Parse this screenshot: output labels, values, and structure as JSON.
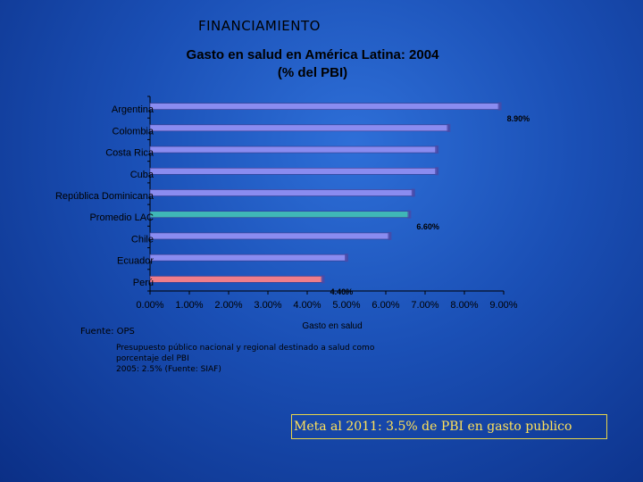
{
  "slide": {
    "title": "FINANCIAMIENTO",
    "source": "Fuente: OPS",
    "note_line1": "Presupuesto público nacional y regional destinado a salud como",
    "note_line2": "porcentaje del PBI",
    "note_line3": "2005: 2.5% (Fuente: SIAF)",
    "goal": "Meta al 2011: 3.5% de PBI en gasto publico"
  },
  "colors": {
    "default_bar": "#8a8cf0",
    "highlight_bar": "#3fb7b7",
    "peru_bar": "#ee7d8a",
    "axis": "#000000"
  },
  "chart_data": {
    "type": "bar",
    "orientation": "horizontal",
    "title_line1": "Gasto en salud en América Latina: 2004",
    "title_line2": "(% del PBI)",
    "xlabel": "Gasto en salud",
    "xlim": [
      0,
      9
    ],
    "xticks": [
      "0.00%",
      "1.00%",
      "2.00%",
      "3.00%",
      "4.00%",
      "5.00%",
      "6.00%",
      "7.00%",
      "8.00%",
      "9.00%"
    ],
    "categories": [
      "Argentina",
      "Colombia",
      "Costa Rica",
      "Cuba",
      "República Dominicana",
      "Promedio LAC",
      "Chile",
      "Ecuador",
      "Perú"
    ],
    "values": [
      8.9,
      7.6,
      7.3,
      7.3,
      6.7,
      6.6,
      6.1,
      5.0,
      4.4
    ],
    "data_labels": [
      "8.90%",
      "",
      "",
      "",
      "",
      "6.60%",
      "",
      "",
      "4.40%"
    ],
    "bar_color_keys": [
      "default_bar",
      "default_bar",
      "default_bar",
      "default_bar",
      "default_bar",
      "highlight_bar",
      "default_bar",
      "default_bar",
      "peru_bar"
    ]
  }
}
